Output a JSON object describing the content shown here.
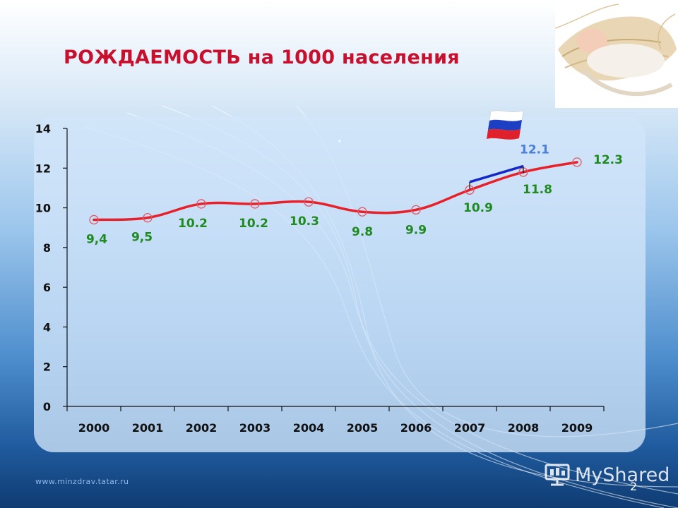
{
  "slide": {
    "title": "РОЖДАЕМОСТЬ на 1000 населения",
    "footer_url": "www.minzdrav.tatar.ru",
    "brand": "MyShared",
    "page_number": "2"
  },
  "chart_data": {
    "type": "line",
    "title": "",
    "xlabel": "",
    "ylabel": "",
    "ylim": [
      0,
      14
    ],
    "yticks": [
      0,
      2,
      4,
      6,
      8,
      10,
      12,
      14
    ],
    "grid": false,
    "categories": [
      "2000",
      "2001",
      "2002",
      "2003",
      "2004",
      "2005",
      "2006",
      "2007",
      "2008",
      "2009"
    ],
    "series": [
      {
        "name": "",
        "color": "#e8202a",
        "values": [
          9.4,
          9.5,
          10.2,
          10.2,
          10.3,
          9.8,
          9.9,
          10.9,
          11.8,
          12.3
        ],
        "labels": [
          "9,4",
          "9,5",
          "10.2",
          "10.2",
          "10.3",
          "9.8",
          "9.9",
          "10.9",
          "11.8",
          "12.3"
        ],
        "label_color": "#1f8a1f"
      },
      {
        "name": "",
        "color": "#1428c8",
        "x": [
          "2007",
          "2008"
        ],
        "values": [
          11.3,
          12.1
        ],
        "labels": [
          "",
          "12.1"
        ],
        "label_color": "#4a7ed8",
        "icon": "russia-flag-icon"
      }
    ]
  }
}
